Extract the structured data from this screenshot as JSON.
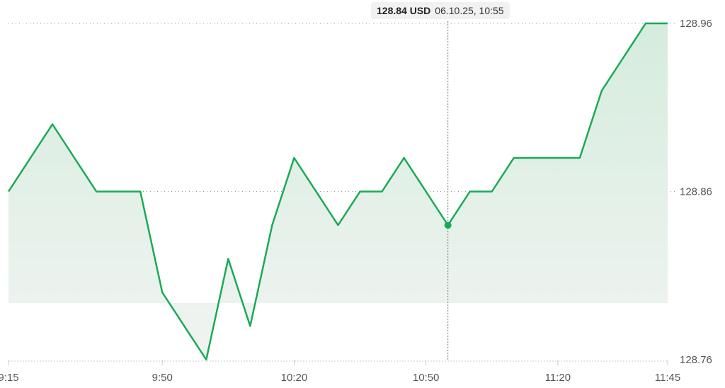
{
  "tooltip": {
    "price": "128.84 USD",
    "datetime": "06.10.25, 10:55"
  },
  "colors": {
    "line": "#1aaa55",
    "fill_top": "#d5ecdd",
    "fill_bottom": "#f1f4f2",
    "grid": "#999999"
  },
  "chart_data": {
    "type": "area",
    "title": "",
    "xlabel": "",
    "ylabel": "",
    "x": [
      "9:15",
      "9:25",
      "9:35",
      "9:45",
      "9:50",
      "10:00",
      "10:05",
      "10:10",
      "10:15",
      "10:20",
      "10:30",
      "10:35",
      "10:40",
      "10:45",
      "10:55",
      "11:00",
      "11:05",
      "11:10",
      "11:25",
      "11:30",
      "11:40",
      "11:45"
    ],
    "values": [
      128.86,
      128.9,
      128.86,
      128.86,
      128.8,
      128.76,
      128.82,
      128.78,
      128.84,
      128.88,
      128.84,
      128.86,
      128.86,
      128.88,
      128.84,
      128.86,
      128.86,
      128.88,
      128.88,
      128.92,
      128.96,
      128.96
    ],
    "ylim": [
      128.76,
      128.96
    ],
    "xlim": [
      "9:15",
      "11:45"
    ],
    "x_ticks": [
      "9:15",
      "9:50",
      "10:20",
      "10:50",
      "11:20",
      "11:45"
    ],
    "y_ticks": [
      "128.76",
      "128.86",
      "128.96"
    ],
    "highlighted_point": {
      "x": "10:55",
      "y": 128.84
    },
    "grid": "dotted horizontal at y ticks",
    "y_axis_position": "right"
  }
}
